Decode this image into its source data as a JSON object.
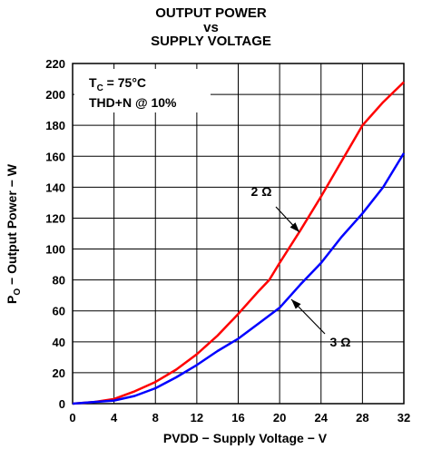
{
  "chart_data": {
    "type": "line",
    "title_line1": "OUTPUT POWER",
    "title_line2": "vs",
    "title_line3": "SUPPLY VOLTAGE",
    "xlabel": "PVDD − Supply Voltage − V",
    "ylabel_prefix": "P",
    "ylabel_sub": "O",
    "ylabel_rest": " − Output Power − W",
    "xlim": [
      0,
      32
    ],
    "ylim": [
      0,
      220
    ],
    "xticks": [
      0,
      4,
      8,
      12,
      16,
      20,
      24,
      28,
      32
    ],
    "yticks": [
      0,
      20,
      40,
      60,
      80,
      100,
      120,
      140,
      160,
      180,
      200,
      220
    ],
    "grid": true,
    "conditions": {
      "line1_prefix": "T",
      "line1_sub": "C",
      "line1_rest": " = 75°C",
      "line2": "THD+N @ 10%"
    },
    "series": [
      {
        "name": "2 Ω",
        "color": "#ff0000",
        "x": [
          0,
          2,
          4,
          6,
          8,
          10,
          12,
          14,
          16,
          18,
          19,
          20,
          22,
          24,
          26,
          28,
          30,
          32
        ],
        "y": [
          0,
          1,
          3,
          8,
          14,
          22,
          32,
          44,
          58,
          73,
          80,
          91,
          112,
          134,
          157,
          180,
          195,
          208
        ]
      },
      {
        "name": "3 Ω",
        "color": "#0000ff",
        "x": [
          0,
          2,
          4,
          6,
          8,
          10,
          12,
          14,
          16,
          18,
          20,
          22,
          24,
          26,
          28,
          30,
          32
        ],
        "y": [
          0,
          1,
          2,
          5,
          10,
          17,
          25,
          34,
          42,
          52,
          62,
          77,
          91,
          108,
          123,
          140,
          162
        ]
      }
    ],
    "annotations": [
      {
        "text": "2 Ω",
        "series": 0
      },
      {
        "text": "3 Ω",
        "series": 1
      }
    ]
  }
}
